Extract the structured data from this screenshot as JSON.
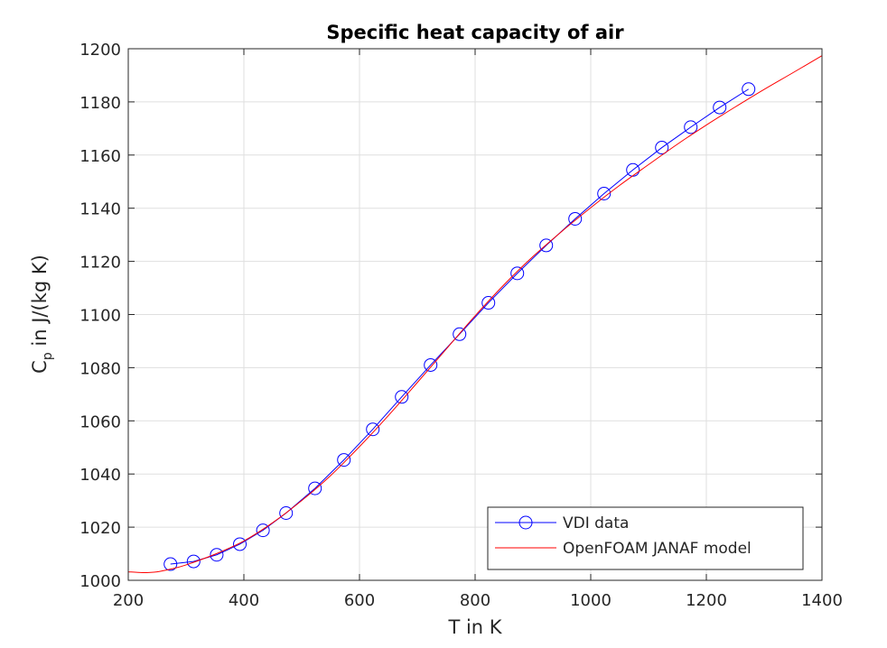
{
  "chart_data": {
    "type": "line",
    "title": "Specific heat capacity of air",
    "xlabel": "T in K",
    "ylabel": {
      "main": "C",
      "sub": "p",
      "rest": " in J/(kg K)"
    },
    "xlim": [
      200,
      1400
    ],
    "ylim": [
      1000,
      1200
    ],
    "xticks": [
      "200",
      "400",
      "600",
      "800",
      "1000",
      "1200",
      "1400"
    ],
    "yticks": [
      "1000",
      "1020",
      "1040",
      "1060",
      "1080",
      "1100",
      "1120",
      "1140",
      "1160",
      "1180",
      "1200"
    ],
    "grid": true,
    "legend_position": "bottom-right",
    "series": [
      {
        "name": "VDI data",
        "color": "#0000ff",
        "marker": "circle",
        "x": [
          273,
          313,
          353,
          393,
          433,
          473,
          523,
          573,
          623,
          673,
          723,
          773,
          823,
          873,
          923,
          973,
          1023,
          1073,
          1123,
          1173,
          1223,
          1273
        ],
        "y": [
          1006.1,
          1007.1,
          1009.6,
          1013.6,
          1018.8,
          1025.3,
          1034.6,
          1045.3,
          1056.8,
          1069.0,
          1081.0,
          1092.6,
          1104.4,
          1115.5,
          1126.0,
          1136.0,
          1145.5,
          1154.4,
          1162.8,
          1170.5,
          1177.9,
          1184.8
        ]
      },
      {
        "name": "OpenFOAM JANAF model",
        "color": "#ff0000",
        "marker": "none",
        "x": [
          200,
          225,
          250,
          275,
          300,
          350,
          400,
          450,
          500,
          550,
          600,
          650,
          700,
          750,
          800,
          850,
          900,
          950,
          1000,
          1050,
          1100,
          1150,
          1200,
          1250,
          1300,
          1350,
          1400
        ],
        "y": [
          1003.2,
          1002.9,
          1003.2,
          1004.3,
          1005.8,
          1009.8,
          1014.8,
          1021.7,
          1030.0,
          1039.4,
          1050.3,
          1062.0,
          1074.4,
          1087.0,
          1099.5,
          1111.2,
          1121.8,
          1131.3,
          1140.2,
          1148.6,
          1156.4,
          1164.1,
          1171.3,
          1178.1,
          1184.7,
          1191.0,
          1197.4
        ]
      }
    ]
  }
}
